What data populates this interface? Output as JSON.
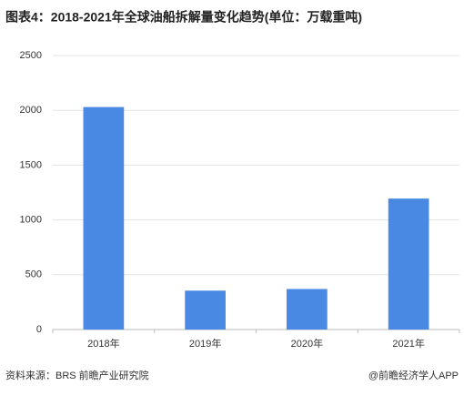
{
  "chart_data": {
    "type": "bar",
    "title": "图表4：2018-2021年全球油船拆解量变化趋势(单位：万载重吨)",
    "categories": [
      "2018年",
      "2019年",
      "2020年",
      "2021年"
    ],
    "values": [
      2030,
      355,
      370,
      1195
    ],
    "color": "#4a89e3",
    "ylim": [
      0,
      2500
    ],
    "yticks": [
      0,
      500,
      1000,
      1500,
      2000,
      2500
    ],
    "grid": true,
    "source": "资料来源：BRS 前瞻产业研究院",
    "footer": "@前瞻经济学人APP"
  }
}
